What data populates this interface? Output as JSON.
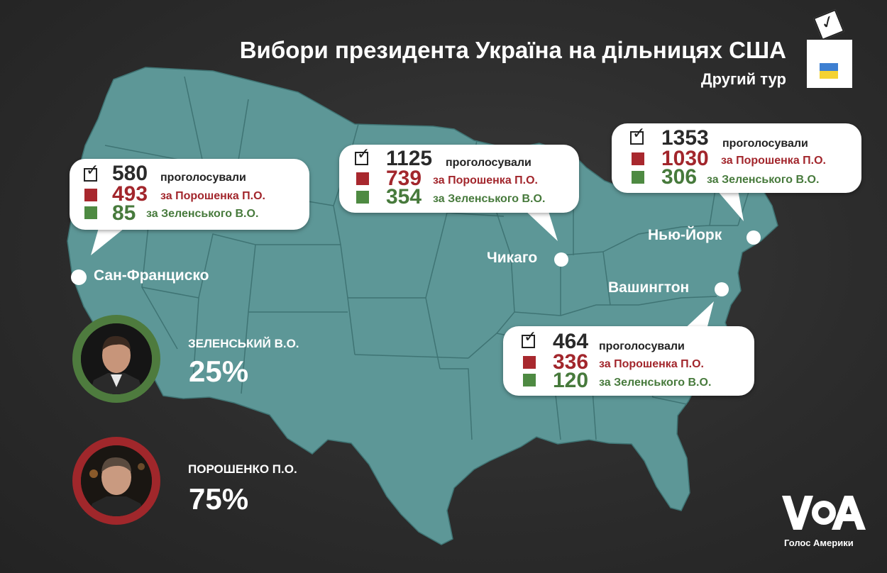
{
  "header": {
    "title": "Вибори президента Україна на дільницях США",
    "subtitle": "Другий тур"
  },
  "colors": {
    "map": "#5d9797",
    "state_border": "#3f7474",
    "poroshenko": "#a2262c",
    "zelensky": "#477a3c"
  },
  "labels": {
    "voted": "проголосували",
    "for_poroshenko": "за Порошенка П.О.",
    "for_zelensky": "за Зеленського В.О."
  },
  "sites": [
    {
      "city": "Сан-Франциско",
      "total": "580",
      "poroshenko": "493",
      "zelensky": "85"
    },
    {
      "city": "Чикаго",
      "total": "1125",
      "poroshenko": "739",
      "zelensky": "354"
    },
    {
      "city": "Нью-Йорк",
      "total": "1353",
      "poroshenko": "1030",
      "zelensky": "306"
    },
    {
      "city": "Вашингтон",
      "total": "464",
      "poroshenko": "336",
      "zelensky": "120"
    }
  ],
  "candidates": [
    {
      "name": "ЗЕЛЕНСЬКИЙ В.О.",
      "percent": "25%",
      "ring_color": "#4e7b3e"
    },
    {
      "name": "ПОРОШЕНКО П.О.",
      "percent": "75%",
      "ring_color": "#a0272b"
    }
  ],
  "logo": {
    "mark": "VOA",
    "tagline": "Голос Америки"
  }
}
